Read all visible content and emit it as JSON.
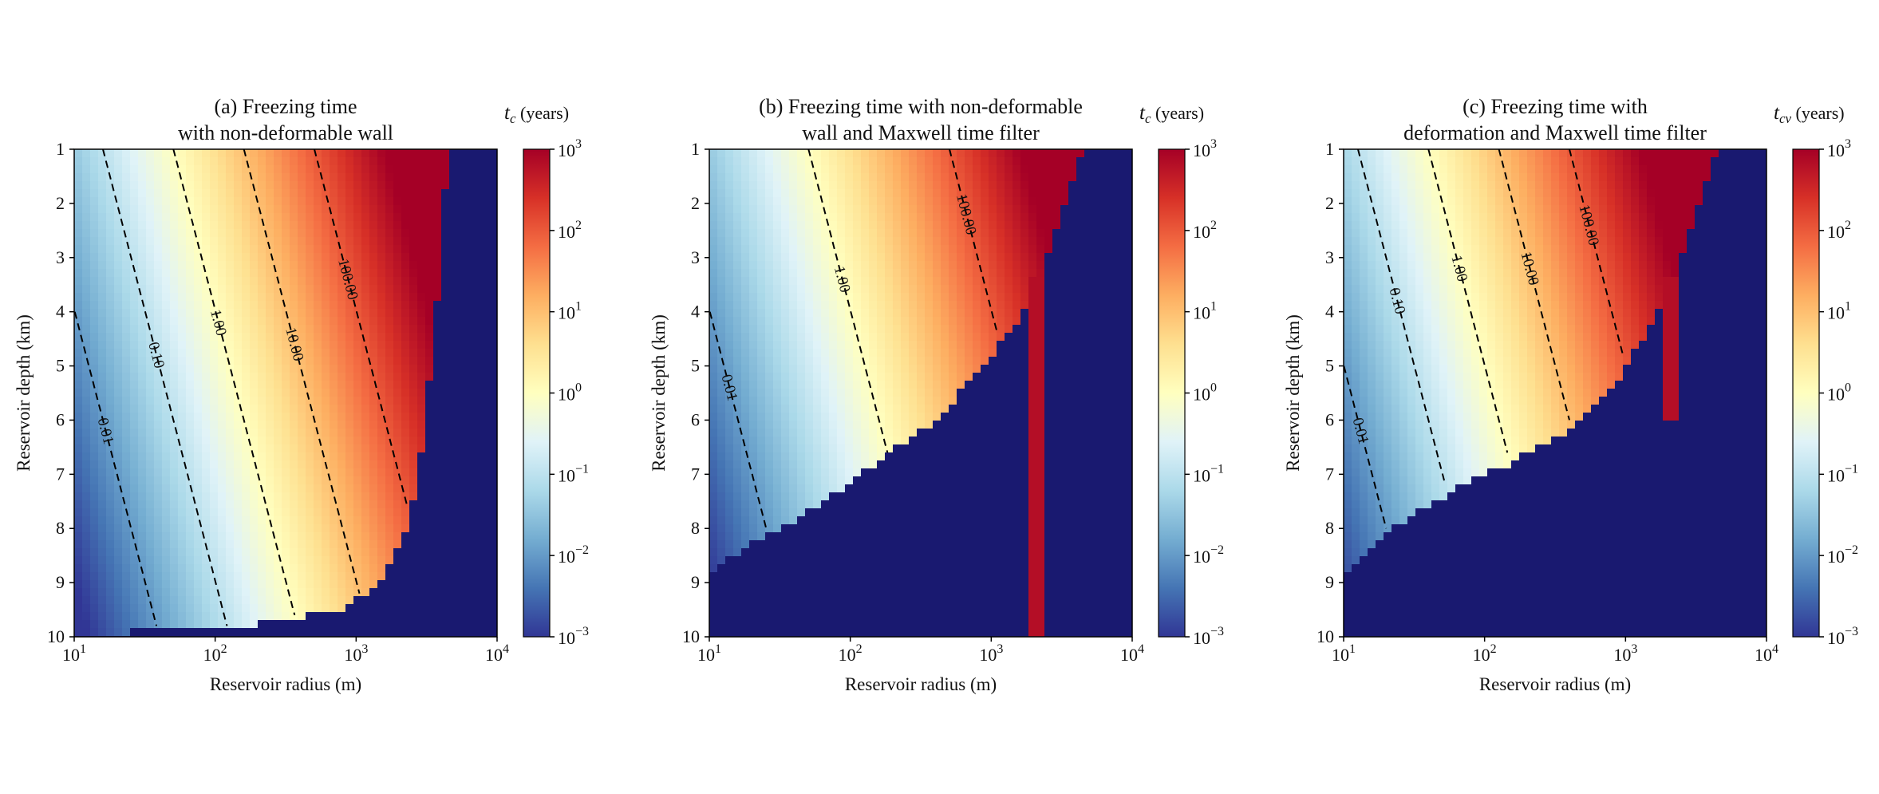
{
  "colors": {
    "invalid_region": "#191970",
    "colormap": "RdYlBu_r",
    "contour": "#000000"
  },
  "chart_data": [
    {
      "type": "heatmap",
      "title_lines": [
        "(a) Freezing time",
        "with non-deformable wall"
      ],
      "xlabel": "Reservoir radius (m)",
      "ylabel": "Reservoir depth (km)",
      "xscale": "log",
      "xlim": [
        10,
        10000
      ],
      "ylim": [
        10,
        1
      ],
      "xticks": [
        {
          "base": "10",
          "exp": "1"
        },
        {
          "base": "10",
          "exp": "2"
        },
        {
          "base": "10",
          "exp": "3"
        },
        {
          "base": "10",
          "exp": "4"
        }
      ],
      "yticks": [
        "1",
        "2",
        "3",
        "4",
        "5",
        "6",
        "7",
        "8",
        "9",
        "10"
      ],
      "colorbar": {
        "label_symbol": "t",
        "label_sub": "c",
        "label_unit": " (years)",
        "scale": "log",
        "range": [
          0.001,
          1000
        ],
        "ticks": [
          {
            "base": "10",
            "exp": "3"
          },
          {
            "base": "10",
            "exp": "2"
          },
          {
            "base": "10",
            "exp": "1"
          },
          {
            "base": "10",
            "exp": "0"
          },
          {
            "base": "10",
            "exp": "−1"
          },
          {
            "base": "10",
            "exp": "−2"
          },
          {
            "base": "10",
            "exp": "−3"
          }
        ]
      },
      "freeze_scale": 1.0,
      "boundary_depth": [
        [
          4500,
          1
        ],
        [
          4200,
          2
        ],
        [
          4000,
          3
        ],
        [
          3700,
          4
        ],
        [
          3400,
          5
        ],
        [
          3100,
          6
        ],
        [
          2800,
          7
        ],
        [
          2300,
          8
        ],
        [
          1500,
          9
        ],
        [
          800,
          9.5
        ],
        [
          120,
          9.85
        ],
        [
          10,
          9.95
        ]
      ],
      "bar": null,
      "contours": [
        {
          "level": 0.01,
          "label": "0.01"
        },
        {
          "level": 0.1,
          "label": "0.10"
        },
        {
          "level": 1,
          "label": "1.00"
        },
        {
          "level": 10,
          "label": "10.00"
        },
        {
          "level": 100,
          "label": "100.00"
        }
      ]
    },
    {
      "type": "heatmap",
      "title_lines": [
        "(b) Freezing time with non-deformable",
        "wall and Maxwell time filter"
      ],
      "xlabel": "Reservoir radius (m)",
      "ylabel": "Reservoir depth (km)",
      "xscale": "log",
      "xlim": [
        10,
        10000
      ],
      "ylim": [
        10,
        1
      ],
      "xticks": [
        {
          "base": "10",
          "exp": "1"
        },
        {
          "base": "10",
          "exp": "2"
        },
        {
          "base": "10",
          "exp": "3"
        },
        {
          "base": "10",
          "exp": "4"
        }
      ],
      "yticks": [
        "1",
        "2",
        "3",
        "4",
        "5",
        "6",
        "7",
        "8",
        "9",
        "10"
      ],
      "colorbar": {
        "label_symbol": "t",
        "label_sub": "c",
        "label_unit": " (years)",
        "scale": "log",
        "range": [
          0.001,
          1000
        ],
        "ticks": [
          {
            "base": "10",
            "exp": "3"
          },
          {
            "base": "10",
            "exp": "2"
          },
          {
            "base": "10",
            "exp": "1"
          },
          {
            "base": "10",
            "exp": "0"
          },
          {
            "base": "10",
            "exp": "−1"
          },
          {
            "base": "10",
            "exp": "−2"
          },
          {
            "base": "10",
            "exp": "−3"
          }
        ]
      },
      "freeze_scale": 1.0,
      "boundary_depth": [
        [
          4500,
          1
        ],
        [
          3300,
          2
        ],
        [
          2500,
          3
        ],
        [
          1900,
          3.8
        ],
        [
          900,
          5.0
        ],
        [
          400,
          6.0
        ],
        [
          120,
          7.0
        ],
        [
          50,
          7.7
        ],
        [
          20,
          8.3
        ],
        [
          10,
          8.8
        ]
      ],
      "bar": {
        "x_range": [
          1800,
          2400
        ],
        "depth_range": [
          3.3,
          10
        ]
      },
      "contours": [
        {
          "level": 0.01,
          "label": "0.01"
        },
        {
          "level": 1,
          "label": "1.00"
        },
        {
          "level": 100,
          "label": "100.00"
        }
      ]
    },
    {
      "type": "heatmap",
      "title_lines": [
        "(c) Freezing time with",
        "deformation and Maxwell time filter"
      ],
      "xlabel": "Reservoir radius (m)",
      "ylabel": "Reservoir depth (km)",
      "xscale": "log",
      "xlim": [
        10,
        10000
      ],
      "ylim": [
        10,
        1
      ],
      "xticks": [
        {
          "base": "10",
          "exp": "1"
        },
        {
          "base": "10",
          "exp": "2"
        },
        {
          "base": "10",
          "exp": "3"
        },
        {
          "base": "10",
          "exp": "4"
        }
      ],
      "yticks": [
        "1",
        "2",
        "3",
        "4",
        "5",
        "6",
        "7",
        "8",
        "9",
        "10"
      ],
      "colorbar": {
        "label_symbol": "t",
        "label_sub": "cv",
        "label_unit": " (years)",
        "scale": "log",
        "range": [
          0.001,
          1000
        ],
        "ticks": [
          {
            "base": "10",
            "exp": "3"
          },
          {
            "base": "10",
            "exp": "2"
          },
          {
            "base": "10",
            "exp": "1"
          },
          {
            "base": "10",
            "exp": "0"
          },
          {
            "base": "10",
            "exp": "−1"
          },
          {
            "base": "10",
            "exp": "−2"
          },
          {
            "base": "10",
            "exp": "−3"
          }
        ]
      },
      "freeze_scale": 1.6,
      "boundary_depth": [
        [
          4500,
          1
        ],
        [
          3300,
          2
        ],
        [
          2500,
          3
        ],
        [
          1700,
          4
        ],
        [
          900,
          5.2
        ],
        [
          400,
          6.2
        ],
        [
          150,
          6.8
        ],
        [
          60,
          7.3
        ],
        [
          25,
          7.9
        ],
        [
          10,
          8.8
        ]
      ],
      "bar": {
        "x_range": [
          1800,
          2400
        ],
        "depth_range": [
          3.3,
          6.0
        ]
      },
      "contours": [
        {
          "level": 0.01,
          "label": "0.01"
        },
        {
          "level": 0.1,
          "label": "0.10"
        },
        {
          "level": 1,
          "label": "1.00"
        },
        {
          "level": 10,
          "label": "10.00"
        },
        {
          "level": 100,
          "label": "100.00"
        }
      ]
    }
  ]
}
